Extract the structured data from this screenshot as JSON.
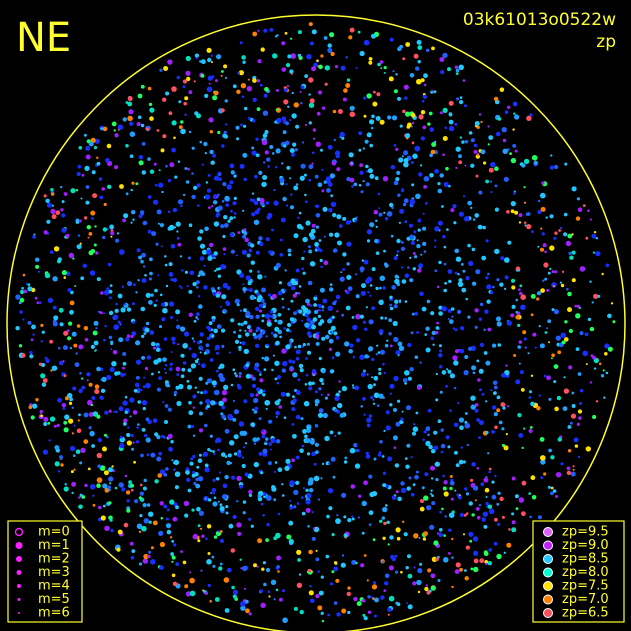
{
  "header": {
    "corner": "NE",
    "frame_id": "03k61013o0522w",
    "mode": "zp"
  },
  "magnitude_legend": {
    "color": "#ff20ff",
    "items": [
      "m=0",
      "m=1",
      "m=2",
      "m=3",
      "m=4",
      "m=5",
      "m=6"
    ]
  },
  "zp_legend": {
    "items": [
      {
        "label": "zp=9.5",
        "color": "#e060ff"
      },
      {
        "label": "zp=9.0",
        "color": "#c020ff"
      },
      {
        "label": "zp=8.5",
        "color": "#20c8ff"
      },
      {
        "label": "zp=8.0",
        "color": "#00ffd0"
      },
      {
        "label": "zp=7.5",
        "color": "#ffe000"
      },
      {
        "label": "zp=7.0",
        "color": "#ff8000"
      },
      {
        "label": "zp=6.5",
        "color": "#ff5060"
      }
    ]
  }
}
